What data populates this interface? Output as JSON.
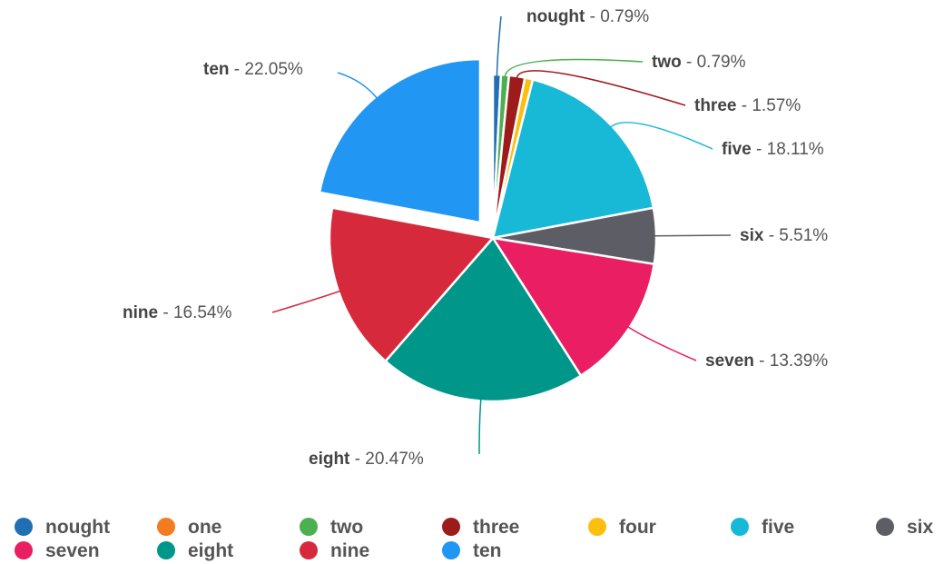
{
  "chart_data": {
    "type": "pie",
    "slices": [
      {
        "name": "nought",
        "value": 0.79,
        "label": "0.79%",
        "color": "#1f6fb2"
      },
      {
        "name": "one",
        "value": 0.0,
        "label": "",
        "color": "#f47c20"
      },
      {
        "name": "two",
        "value": 0.79,
        "label": "0.79%",
        "color": "#4caf50"
      },
      {
        "name": "three",
        "value": 1.57,
        "label": "1.57%",
        "color": "#9e1b1b"
      },
      {
        "name": "four",
        "value": 0.79,
        "label": "",
        "color": "#fbbf0f"
      },
      {
        "name": "five",
        "value": 18.11,
        "label": "18.11%",
        "color": "#18b9d6"
      },
      {
        "name": "six",
        "value": 5.51,
        "label": "5.51%",
        "color": "#5d5d66"
      },
      {
        "name": "seven",
        "value": 13.39,
        "label": "13.39%",
        "color": "#e91e63"
      },
      {
        "name": "eight",
        "value": 20.47,
        "label": "20.47%",
        "color": "#00968a"
      },
      {
        "name": "nine",
        "value": 16.54,
        "label": "16.54%",
        "color": "#d62a3c"
      },
      {
        "name": "ten",
        "value": 22.05,
        "label": "22.05%",
        "color": "#2196f3"
      }
    ],
    "exploded": [
      "ten"
    ],
    "legend_position": "bottom",
    "separator": " - "
  }
}
